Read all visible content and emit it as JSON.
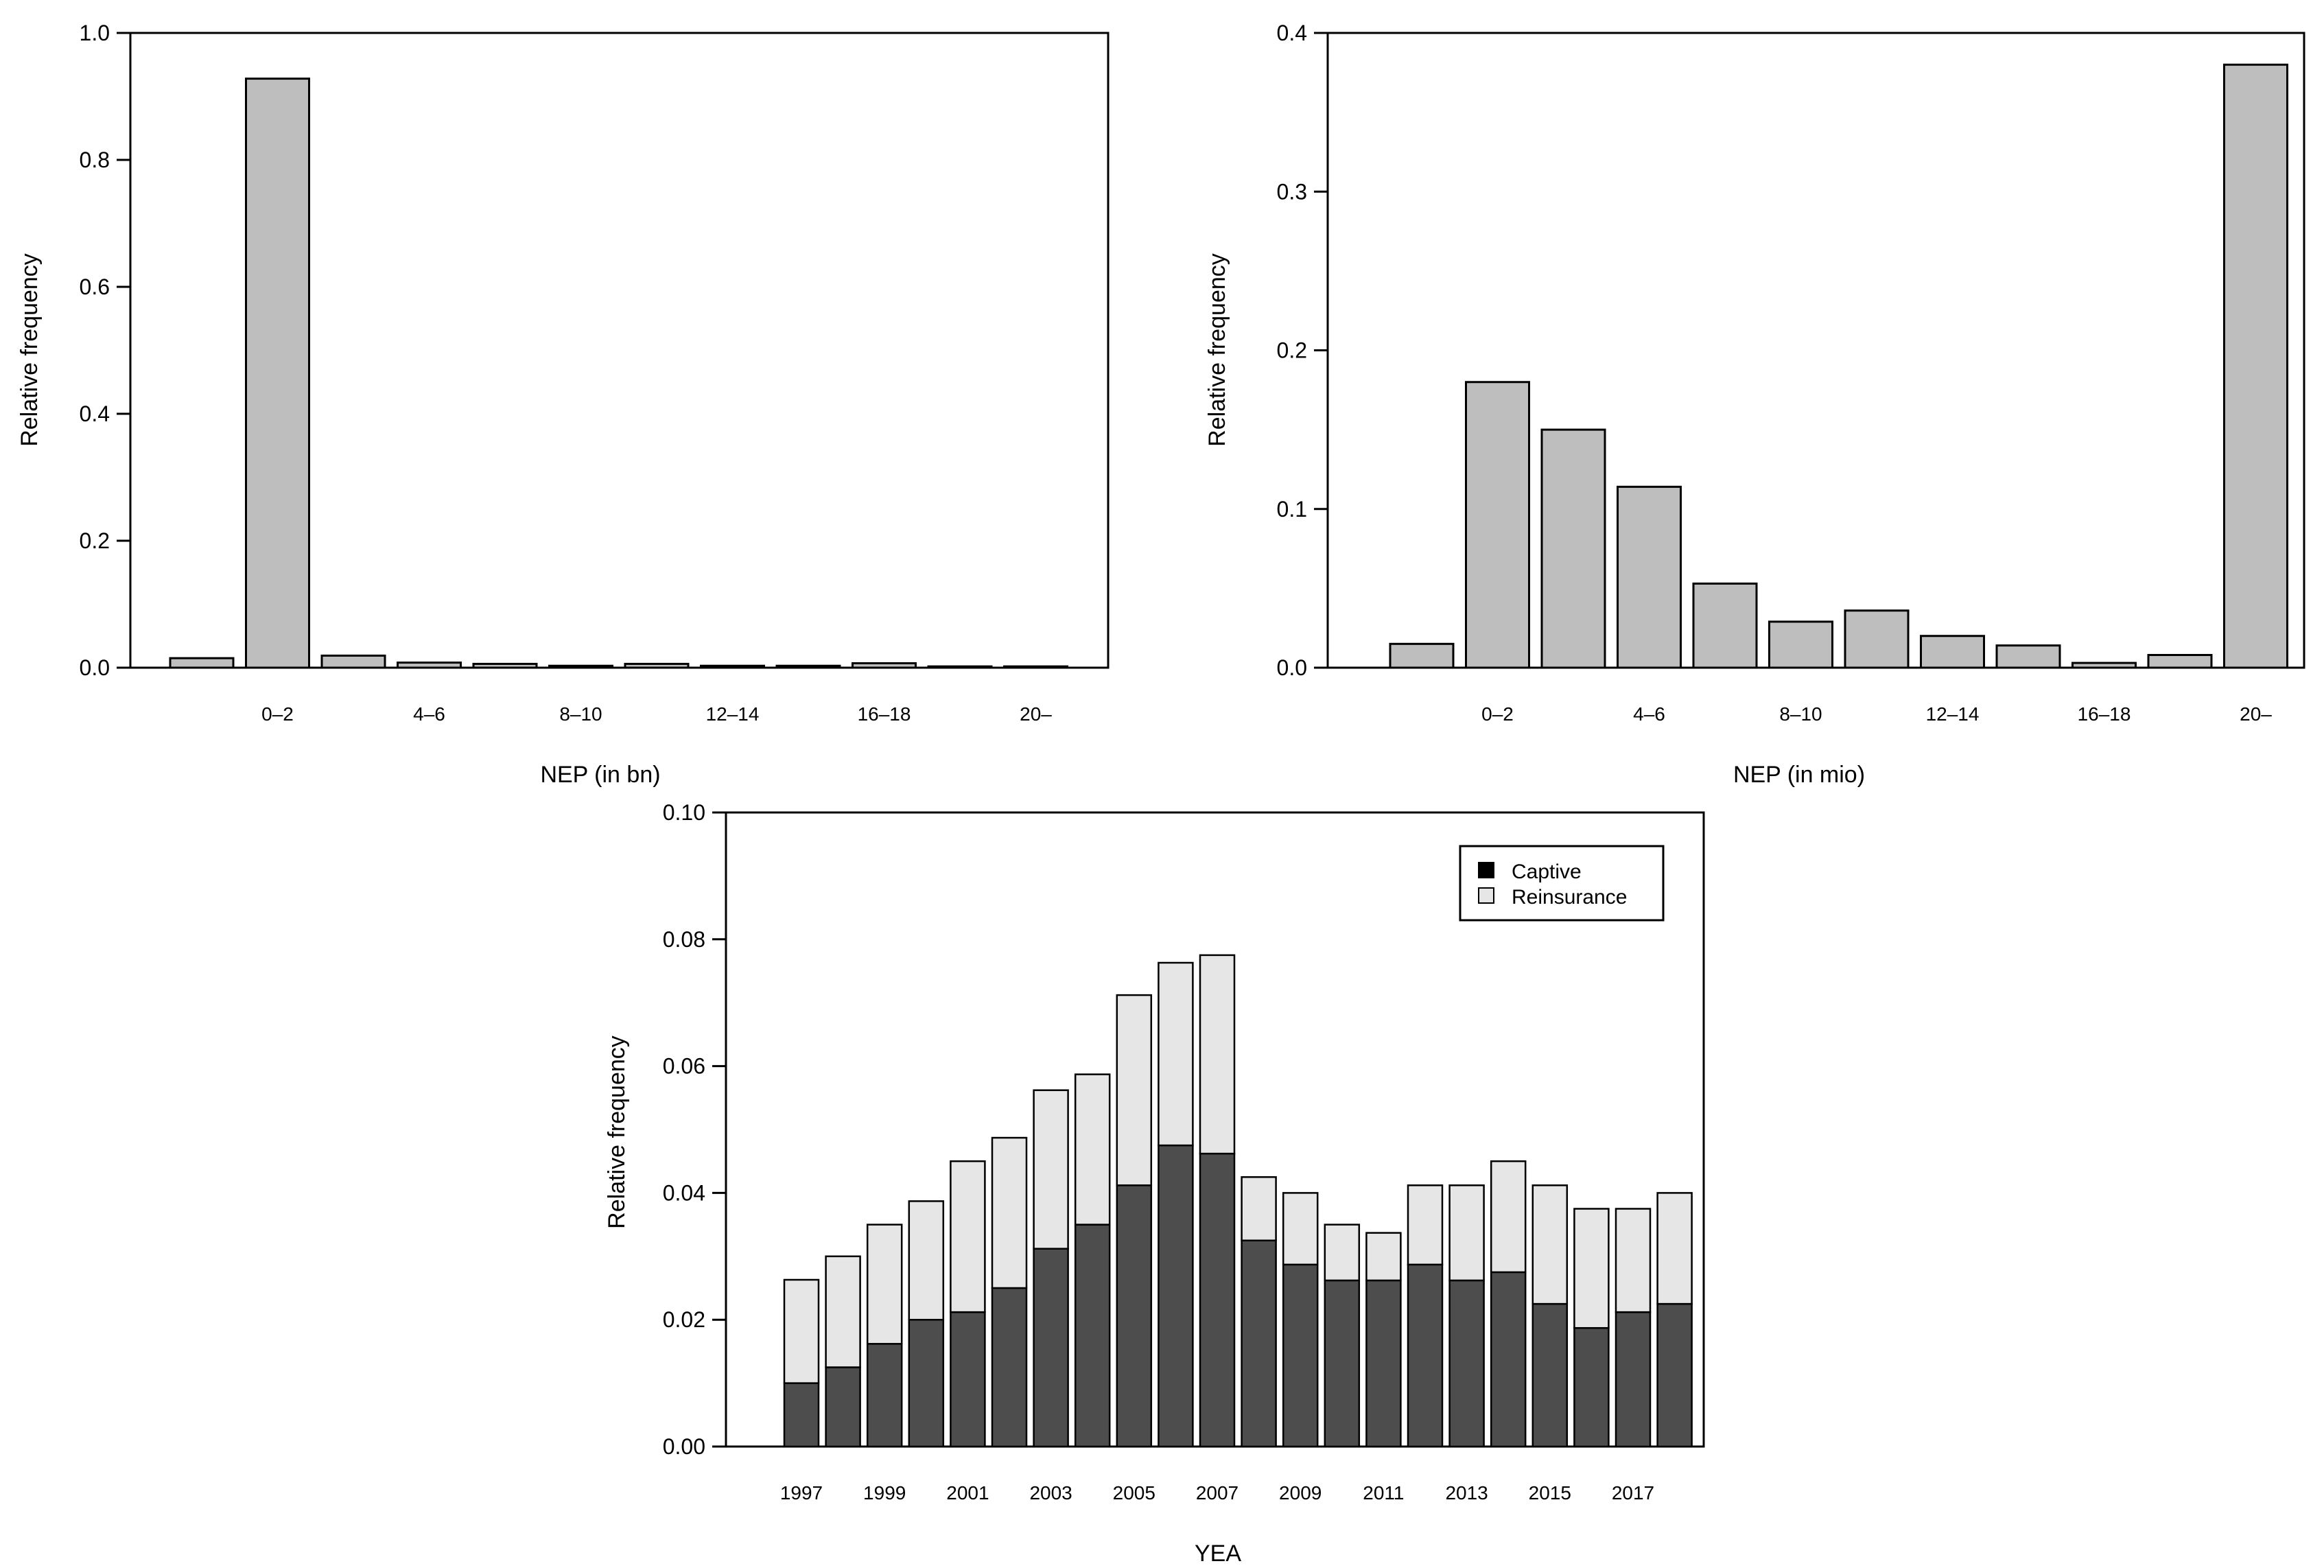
{
  "chart_data": [
    {
      "id": "nep_bn",
      "type": "bar",
      "title": "",
      "xlabel": "NEP (in bn)",
      "ylabel": "Relative frequency",
      "ylim": [
        0,
        1.0
      ],
      "yticks": [
        "0.0",
        "0.2",
        "0.4",
        "0.6",
        "0.8",
        "1.0"
      ],
      "grid": false,
      "num_bars": 12,
      "values": [
        0.015,
        0.928,
        0.019,
        0.008,
        0.006,
        0.003,
        0.006,
        0.003,
        0.003,
        0.007,
        0.002,
        0.002
      ],
      "category_labels": [
        {
          "index": 1,
          "label": "0–2"
        },
        {
          "index": 3,
          "label": "4–6"
        },
        {
          "index": 5,
          "label": "8–10"
        },
        {
          "index": 7,
          "label": "12–14"
        },
        {
          "index": 9,
          "label": "16–18"
        },
        {
          "index": 11,
          "label": "20–"
        }
      ],
      "bar_color": "#bebebe"
    },
    {
      "id": "nep_mio",
      "type": "bar",
      "title": "",
      "xlabel": "NEP (in mio)",
      "ylabel": "Relative frequency",
      "ylim": [
        0,
        0.4
      ],
      "yticks": [
        "0.0",
        "0.1",
        "0.2",
        "0.3",
        "0.4"
      ],
      "grid": false,
      "num_bars": 12,
      "values": [
        0.015,
        0.18,
        0.15,
        0.114,
        0.053,
        0.029,
        0.036,
        0.02,
        0.014,
        0.003,
        0.008,
        0.38
      ],
      "category_labels": [
        {
          "index": 1,
          "label": "0–2"
        },
        {
          "index": 3,
          "label": "4–6"
        },
        {
          "index": 5,
          "label": "8–10"
        },
        {
          "index": 7,
          "label": "12–14"
        },
        {
          "index": 9,
          "label": "16–18"
        },
        {
          "index": 11,
          "label": "20–"
        }
      ],
      "bar_color": "#bebebe"
    },
    {
      "id": "yea",
      "type": "bar",
      "stacked": true,
      "title": "",
      "xlabel": "YEA",
      "ylabel": "Relative frequency",
      "ylim": [
        0,
        0.1
      ],
      "yticks": [
        "0.00",
        "0.02",
        "0.04",
        "0.06",
        "0.08",
        "0.10"
      ],
      "grid": false,
      "legend_position": "top-right",
      "categories": [
        "1997",
        "1998",
        "1999",
        "2000",
        "2001",
        "2002",
        "2003",
        "2004",
        "2005",
        "2006",
        "2007",
        "2008",
        "2009",
        "2010",
        "2011",
        "2012",
        "2013",
        "2014",
        "2015",
        "2016",
        "2017",
        "2018"
      ],
      "category_labels": [
        {
          "index": 0,
          "label": "1997"
        },
        {
          "index": 2,
          "label": "1999"
        },
        {
          "index": 4,
          "label": "2001"
        },
        {
          "index": 6,
          "label": "2003"
        },
        {
          "index": 8,
          "label": "2005"
        },
        {
          "index": 10,
          "label": "2007"
        },
        {
          "index": 12,
          "label": "2009"
        },
        {
          "index": 14,
          "label": "2011"
        },
        {
          "index": 16,
          "label": "2013"
        },
        {
          "index": 18,
          "label": "2015"
        },
        {
          "index": 20,
          "label": "2017"
        }
      ],
      "series": [
        {
          "name": "Captive",
          "color": "#4d4d4d",
          "legend_color": "#000000",
          "values": [
            0.01,
            0.0125,
            0.0162,
            0.02,
            0.0212,
            0.025,
            0.0312,
            0.035,
            0.0412,
            0.0475,
            0.0462,
            0.0325,
            0.0287,
            0.0262,
            0.0262,
            0.0287,
            0.0262,
            0.0275,
            0.0225,
            0.0187,
            0.0212,
            0.0225
          ]
        },
        {
          "name": "Reinsurance",
          "color": "#e6e6e6",
          "legend_color": "#e6e6e6",
          "values": [
            0.0163,
            0.0175,
            0.0188,
            0.0187,
            0.0238,
            0.0237,
            0.025,
            0.0237,
            0.03,
            0.0288,
            0.0313,
            0.01,
            0.0113,
            0.0088,
            0.0075,
            0.0125,
            0.015,
            0.0175,
            0.0187,
            0.0188,
            0.0163,
            0.0175
          ]
        }
      ]
    }
  ]
}
